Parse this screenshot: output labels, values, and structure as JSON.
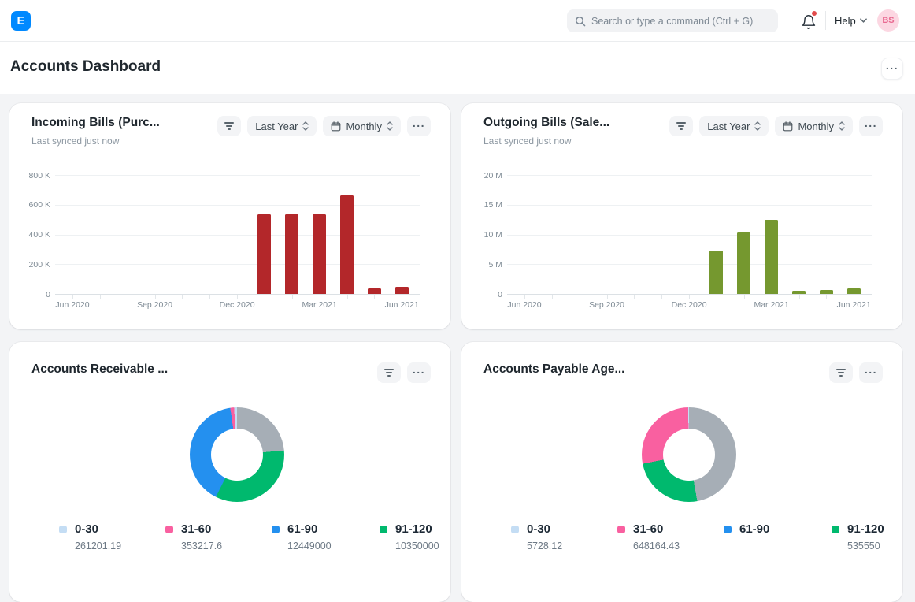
{
  "colors": {
    "logo_bg": "#0089ff",
    "avatar_bg": "#fcd7e2",
    "avatar_text": "#e96b92",
    "notification_dot": "#e24c4c"
  },
  "ui": {
    "more_label": "..."
  },
  "navbar": {
    "logo_letter": "E",
    "search_placeholder": "Search or type a command (Ctrl + G)",
    "help_label": "Help",
    "avatar_initials": "BS"
  },
  "page": {
    "title": "Accounts Dashboard"
  },
  "cards": {
    "incoming": {
      "title": "Incoming Bills (Purc...",
      "subtitle": "Last synced just now",
      "filter_period": "Last Year",
      "filter_frequency": "Monthly"
    },
    "outgoing": {
      "title": "Outgoing Bills (Sale...",
      "subtitle": "Last synced just now",
      "filter_period": "Last Year",
      "filter_frequency": "Monthly"
    },
    "receivable": {
      "title": "Accounts Receivable ..."
    },
    "payable": {
      "title": "Accounts Payable Age..."
    }
  },
  "chart_data": [
    {
      "id": "incoming",
      "type": "bar",
      "title": "Incoming Bills (Purc...",
      "color": "#b3272a",
      "ylim": [
        0,
        800000
      ],
      "yticks": [
        {
          "label": "800 K",
          "value": 800000
        },
        {
          "label": "600 K",
          "value": 600000
        },
        {
          "label": "400 K",
          "value": 400000
        },
        {
          "label": "200 K",
          "value": 200000
        },
        {
          "label": "0",
          "value": 0
        }
      ],
      "slots": 13,
      "xticks": [
        {
          "label": "Jun 2020",
          "slot": 0
        },
        {
          "label": "Sep 2020",
          "slot": 3
        },
        {
          "label": "Dec 2020",
          "slot": 6
        },
        {
          "label": "Mar 2021",
          "slot": 9
        },
        {
          "label": "Jun 2021",
          "slot": 12
        }
      ],
      "bars": [
        {
          "slot": 7,
          "month": "Jan 2021",
          "value": 535000
        },
        {
          "slot": 8,
          "month": "Feb 2021",
          "value": 535000
        },
        {
          "slot": 9,
          "month": "Mar 2021",
          "value": 535000
        },
        {
          "slot": 10,
          "month": "Apr 2021",
          "value": 660000
        },
        {
          "slot": 11,
          "month": "May 2021",
          "value": 35000
        },
        {
          "slot": 12,
          "month": "Jun 2021",
          "value": 48000
        }
      ]
    },
    {
      "id": "outgoing",
      "type": "bar",
      "title": "Outgoing Bills (Sale...",
      "color": "#75982f",
      "ylim": [
        0,
        20000000
      ],
      "yticks": [
        {
          "label": "20 M",
          "value": 20000000
        },
        {
          "label": "15 M",
          "value": 15000000
        },
        {
          "label": "10 M",
          "value": 10000000
        },
        {
          "label": "5 M",
          "value": 5000000
        },
        {
          "label": "0",
          "value": 0
        }
      ],
      "slots": 13,
      "xticks": [
        {
          "label": "Jun 2020",
          "slot": 0
        },
        {
          "label": "Sep 2020",
          "slot": 3
        },
        {
          "label": "Dec 2020",
          "slot": 6
        },
        {
          "label": "Mar 2021",
          "slot": 9
        },
        {
          "label": "Jun 2021",
          "slot": 12
        }
      ],
      "bars": [
        {
          "slot": 7,
          "month": "Jan 2021",
          "value": 7300000
        },
        {
          "slot": 8,
          "month": "Feb 2021",
          "value": 10300000
        },
        {
          "slot": 9,
          "month": "Mar 2021",
          "value": 12500000
        },
        {
          "slot": 10,
          "month": "Apr 2021",
          "value": 500000
        },
        {
          "slot": 11,
          "month": "May 2021",
          "value": 650000
        },
        {
          "slot": 12,
          "month": "Jun 2021",
          "value": 900000
        }
      ]
    },
    {
      "id": "receivable",
      "type": "donut",
      "title": "Accounts Receivable ...",
      "legend": [
        {
          "label": "0-30",
          "value": "261201.19",
          "color": "#c4ddf4"
        },
        {
          "label": "31-60",
          "value": "353217.6",
          "color": "#f960a0"
        },
        {
          "label": "61-90",
          "value": "12449000",
          "color": "#2490ef"
        },
        {
          "label": "91-120",
          "value": "10350000",
          "color": "#00b96e"
        }
      ],
      "segments_clockwise": [
        {
          "label": "",
          "color": "#a6aeb6",
          "percent": 23.6
        },
        {
          "label": "91-120",
          "color": "#00b96e",
          "percent": 33.8
        },
        {
          "label": "61-90",
          "color": "#2490ef",
          "percent": 40.3
        },
        {
          "label": "31-60",
          "color": "#f960a0",
          "percent": 1.3
        },
        {
          "label": "0-30",
          "color": "#c4ddf4",
          "percent": 1.0
        }
      ]
    },
    {
      "id": "payable",
      "type": "donut",
      "title": "Accounts Payable Age...",
      "legend": [
        {
          "label": "0-30",
          "value": "5728.12",
          "color": "#c4ddf4"
        },
        {
          "label": "31-60",
          "value": "648164.43",
          "color": "#f960a0"
        },
        {
          "label": "61-90",
          "value": "",
          "color": "#2490ef"
        },
        {
          "label": "91-120",
          "value": "535550",
          "color": "#00b96e"
        }
      ],
      "segments_clockwise": [
        {
          "label": "",
          "color": "#a6aeb6",
          "percent": 47.2
        },
        {
          "label": "91-120",
          "color": "#00b96e",
          "percent": 24.7
        },
        {
          "label": "31-60",
          "color": "#f960a0",
          "percent": 27.8
        },
        {
          "label": "0-30",
          "color": "#c4ddf4",
          "percent": 0.3
        }
      ]
    }
  ]
}
